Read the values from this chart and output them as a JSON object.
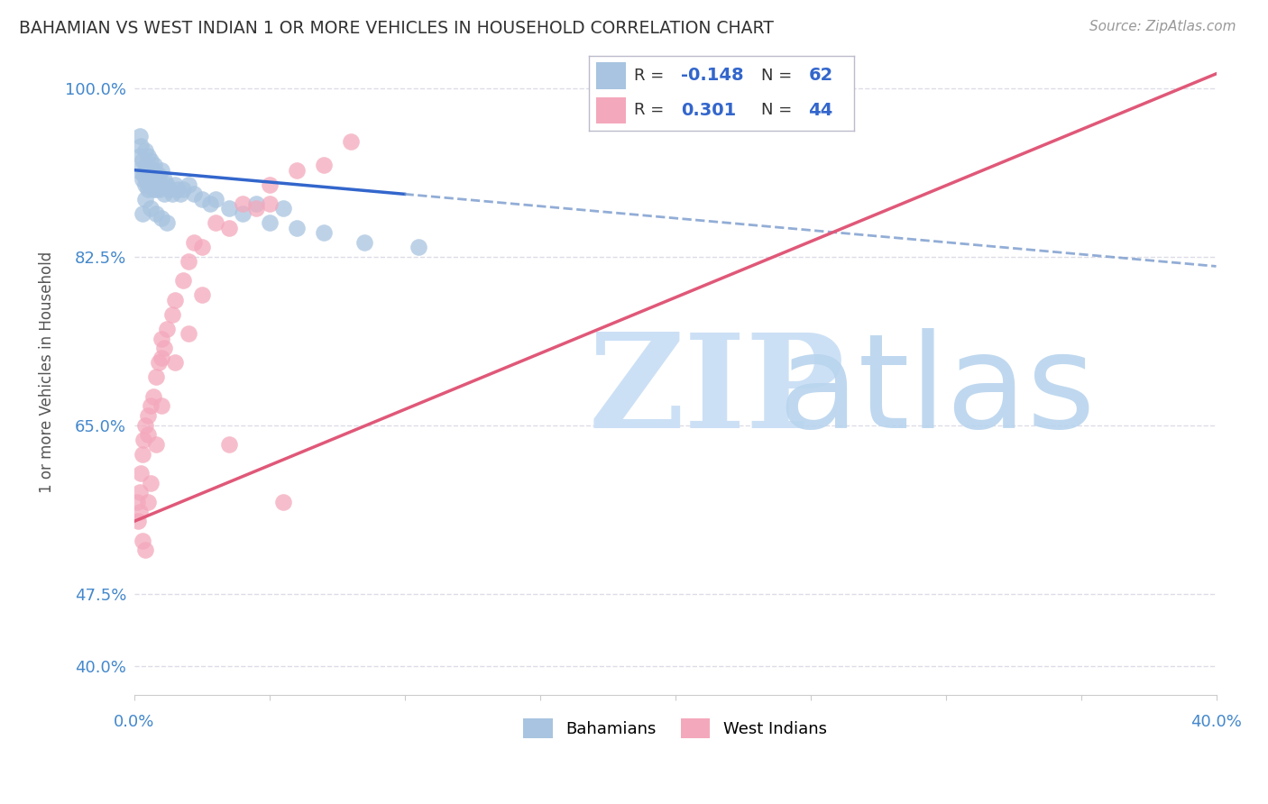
{
  "title": "BAHAMIAN VS WEST INDIAN 1 OR MORE VEHICLES IN HOUSEHOLD CORRELATION CHART",
  "source": "Source: ZipAtlas.com",
  "ylabel": "1 or more Vehicles in Household",
  "ytick_vals": [
    40.0,
    47.5,
    65.0,
    82.5,
    100.0
  ],
  "ytick_labels": [
    "40.0%",
    "47.5%",
    "65.0%",
    "82.5%",
    "100.0%"
  ],
  "xlim": [
    0.0,
    40.0
  ],
  "ylim": [
    37.0,
    104.0
  ],
  "bahamian_color": "#a8c4e0",
  "west_indian_color": "#f4a8bc",
  "blue_line_color": "#3366cc",
  "blue_dash_color": "#7799cc",
  "pink_line_color": "#e05878",
  "watermark_zip_color": "#cce0f5",
  "watermark_atlas_color": "#b8d4ee",
  "bg_color": "#ffffff",
  "grid_color": "#dcdce8",
  "axis_label_color": "#4488cc",
  "title_color": "#333333",
  "R1": "-0.148",
  "N1": "62",
  "R2": "0.301",
  "N2": "44",
  "blue_line_x0": 0.0,
  "blue_line_y0": 91.5,
  "blue_line_x1": 40.0,
  "blue_line_y1": 81.5,
  "blue_solid_end_x": 10.0,
  "pink_line_x0": 0.0,
  "pink_line_y0": 55.0,
  "pink_line_x1": 40.0,
  "pink_line_y1": 101.5,
  "bahamians_x": [
    0.15,
    0.2,
    0.2,
    0.25,
    0.3,
    0.3,
    0.35,
    0.4,
    0.4,
    0.4,
    0.45,
    0.45,
    0.5,
    0.5,
    0.5,
    0.55,
    0.55,
    0.6,
    0.6,
    0.65,
    0.65,
    0.7,
    0.7,
    0.75,
    0.75,
    0.8,
    0.8,
    0.85,
    0.9,
    0.9,
    0.95,
    1.0,
    1.0,
    1.1,
    1.1,
    1.2,
    1.3,
    1.4,
    1.5,
    1.6,
    1.7,
    1.8,
    2.0,
    2.2,
    2.5,
    2.8,
    3.0,
    3.5,
    4.0,
    5.0,
    6.0,
    7.0,
    8.5,
    10.5,
    4.5,
    5.5,
    0.3,
    0.4,
    0.6,
    0.8,
    1.0,
    1.2
  ],
  "bahamians_y": [
    91.5,
    95.0,
    93.0,
    94.0,
    92.5,
    90.5,
    91.0,
    93.5,
    91.5,
    90.0,
    92.0,
    90.5,
    91.0,
    93.0,
    89.5,
    90.0,
    91.5,
    90.0,
    92.5,
    91.0,
    90.0,
    91.5,
    89.5,
    92.0,
    90.5,
    91.0,
    89.5,
    90.5,
    91.0,
    90.0,
    89.5,
    91.5,
    90.0,
    90.5,
    89.0,
    90.0,
    89.5,
    89.0,
    90.0,
    89.5,
    89.0,
    89.5,
    90.0,
    89.0,
    88.5,
    88.0,
    88.5,
    87.5,
    87.0,
    86.0,
    85.5,
    85.0,
    84.0,
    83.5,
    88.0,
    87.5,
    87.0,
    88.5,
    87.5,
    87.0,
    86.5,
    86.0
  ],
  "west_indians_x": [
    0.1,
    0.15,
    0.2,
    0.2,
    0.25,
    0.3,
    0.35,
    0.4,
    0.5,
    0.5,
    0.6,
    0.7,
    0.8,
    0.9,
    1.0,
    1.0,
    1.1,
    1.2,
    1.4,
    1.5,
    1.8,
    2.0,
    2.2,
    2.5,
    3.0,
    3.5,
    4.0,
    4.5,
    5.0,
    6.0,
    7.0,
    8.0,
    0.3,
    0.4,
    0.5,
    0.6,
    0.8,
    1.0,
    1.5,
    2.0,
    2.5,
    5.5,
    3.5,
    5.0
  ],
  "west_indians_y": [
    57.0,
    55.0,
    58.0,
    56.0,
    60.0,
    62.0,
    63.5,
    65.0,
    64.0,
    66.0,
    67.0,
    68.0,
    70.0,
    71.5,
    72.0,
    74.0,
    73.0,
    75.0,
    76.5,
    78.0,
    80.0,
    82.0,
    84.0,
    83.5,
    86.0,
    85.5,
    88.0,
    87.5,
    90.0,
    91.5,
    92.0,
    94.5,
    53.0,
    52.0,
    57.0,
    59.0,
    63.0,
    67.0,
    71.5,
    74.5,
    78.5,
    57.0,
    63.0,
    88.0
  ]
}
